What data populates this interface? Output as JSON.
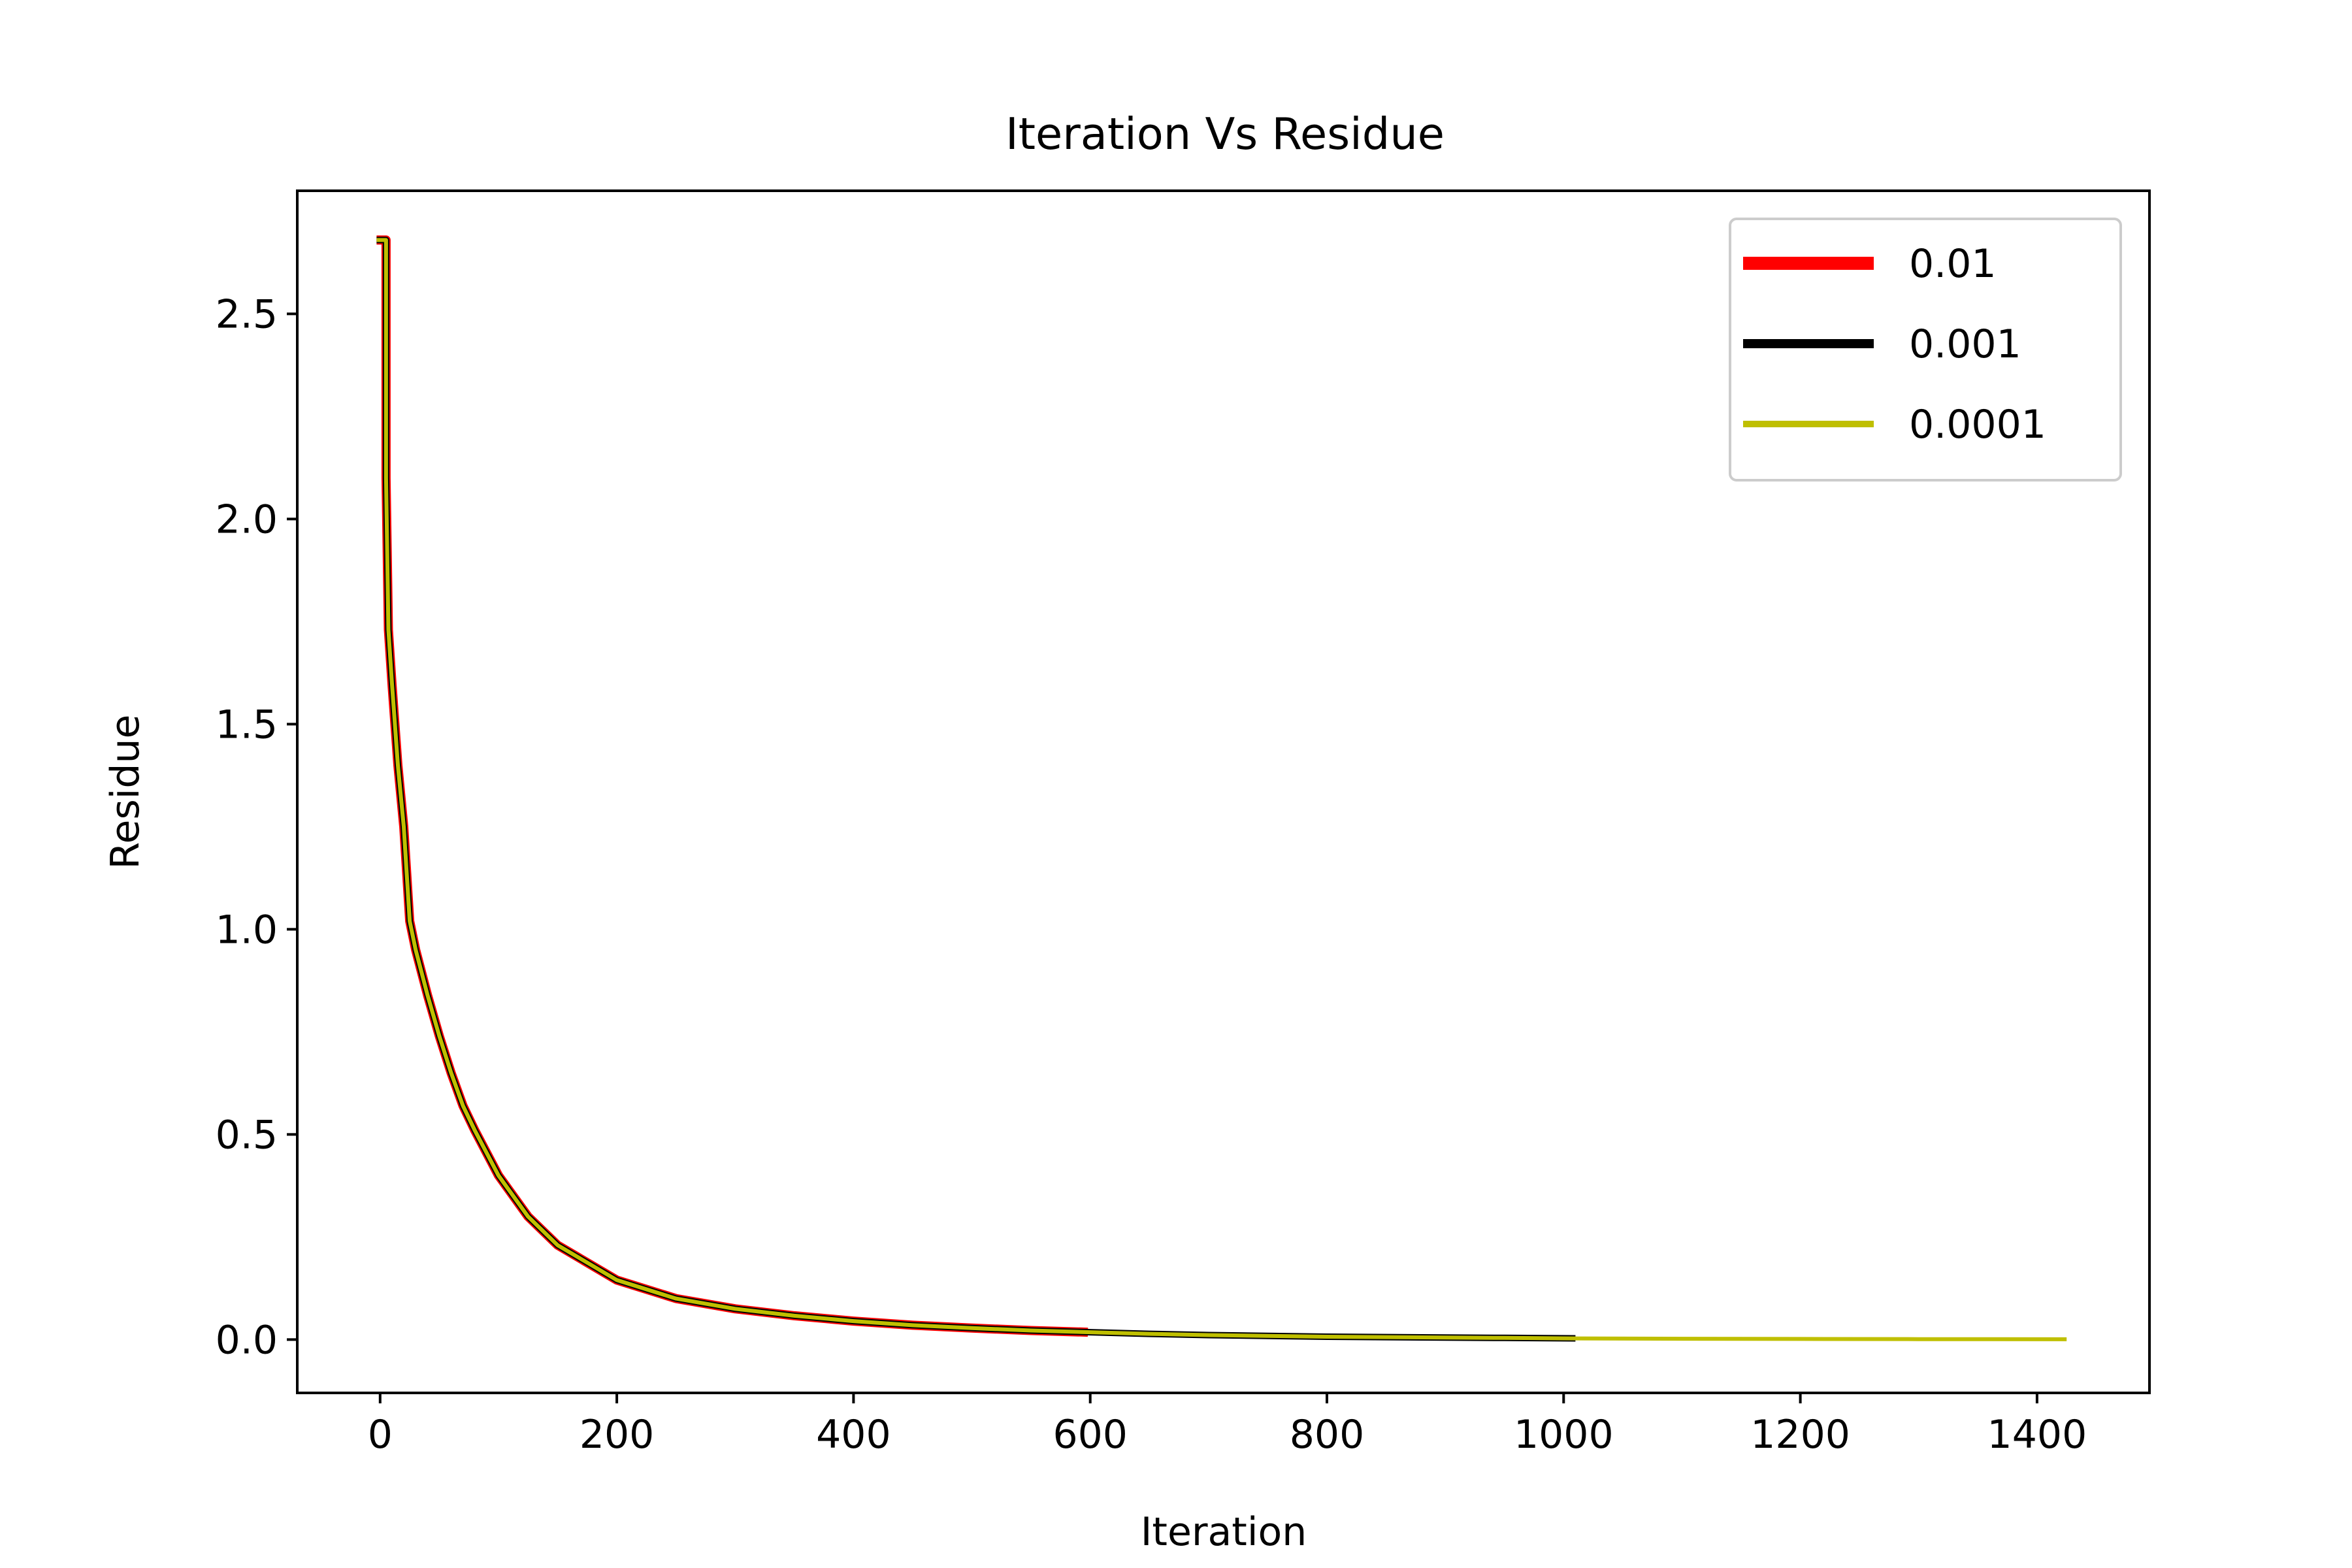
{
  "chart_data": {
    "type": "line",
    "title": "Iteration Vs Residue",
    "xlabel": "Iteration",
    "ylabel": "Residue",
    "xlim": [
      -70,
      1495
    ],
    "ylim": [
      -0.13,
      2.8
    ],
    "xticks": [
      0,
      200,
      400,
      600,
      800,
      1000,
      1200,
      1400
    ],
    "xtick_labels": [
      "0",
      "200",
      "400",
      "600",
      "800",
      "1000",
      "1200",
      "1400"
    ],
    "yticks": [
      0.0,
      0.5,
      1.0,
      1.5,
      2.0,
      2.5
    ],
    "ytick_labels": [
      "0.0",
      "0.5",
      "1.0",
      "1.5",
      "2.0",
      "2.5"
    ],
    "grid": false,
    "legend_position": "top-right",
    "series": [
      {
        "name": "0.01",
        "color": "#ff0000",
        "x": [
          -3,
          5,
          5,
          7,
          10,
          15,
          20,
          25,
          30,
          40,
          50,
          60,
          70,
          80,
          100,
          125,
          150,
          200,
          250,
          300,
          350,
          400,
          450,
          500,
          550,
          598
        ],
        "y": [
          2.68,
          2.68,
          2.1,
          1.73,
          1.6,
          1.4,
          1.25,
          1.02,
          0.95,
          0.84,
          0.74,
          0.65,
          0.57,
          0.51,
          0.4,
          0.3,
          0.23,
          0.145,
          0.1,
          0.075,
          0.058,
          0.045,
          0.035,
          0.028,
          0.022,
          0.018
        ]
      },
      {
        "name": "0.001",
        "color": "#000000",
        "x": [
          -3,
          5,
          5,
          7,
          10,
          15,
          20,
          25,
          30,
          40,
          50,
          60,
          70,
          80,
          100,
          125,
          150,
          200,
          250,
          300,
          350,
          400,
          450,
          500,
          550,
          600,
          650,
          700,
          750,
          800,
          850,
          900,
          950,
          1010
        ],
        "y": [
          2.68,
          2.68,
          2.1,
          1.73,
          1.6,
          1.4,
          1.25,
          1.02,
          0.95,
          0.84,
          0.74,
          0.65,
          0.57,
          0.51,
          0.4,
          0.3,
          0.23,
          0.145,
          0.1,
          0.075,
          0.058,
          0.045,
          0.035,
          0.028,
          0.022,
          0.018,
          0.014,
          0.011,
          0.009,
          0.007,
          0.006,
          0.005,
          0.004,
          0.003
        ]
      },
      {
        "name": "0.0001",
        "color": "#bfbf00",
        "x": [
          -3,
          5,
          5,
          7,
          10,
          15,
          20,
          25,
          30,
          40,
          50,
          60,
          70,
          80,
          100,
          125,
          150,
          200,
          250,
          300,
          350,
          400,
          450,
          500,
          550,
          600,
          650,
          700,
          750,
          800,
          850,
          900,
          950,
          1000,
          1100,
          1200,
          1300,
          1425
        ],
        "y": [
          2.68,
          2.68,
          2.1,
          1.73,
          1.6,
          1.4,
          1.25,
          1.02,
          0.95,
          0.84,
          0.74,
          0.65,
          0.57,
          0.51,
          0.4,
          0.3,
          0.23,
          0.145,
          0.1,
          0.075,
          0.058,
          0.045,
          0.035,
          0.028,
          0.022,
          0.018,
          0.014,
          0.011,
          0.009,
          0.007,
          0.006,
          0.005,
          0.004,
          0.003,
          0.002,
          0.0015,
          0.001,
          0.0008
        ]
      }
    ]
  }
}
